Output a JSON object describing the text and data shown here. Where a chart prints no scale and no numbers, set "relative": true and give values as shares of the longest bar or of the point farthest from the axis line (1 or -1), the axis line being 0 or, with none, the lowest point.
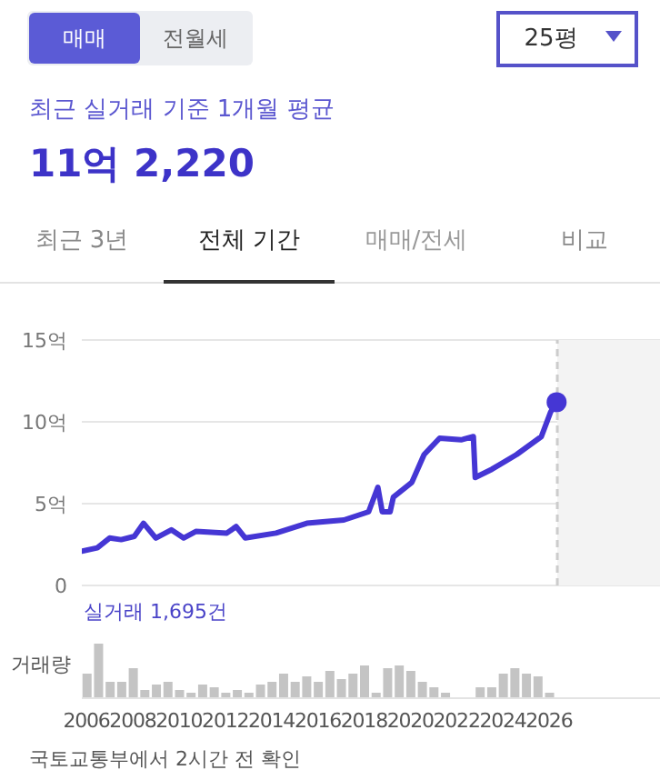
{
  "chart_data": [
    {
      "type": "line",
      "annotations": [
        "매매",
        "전월세",
        "25평",
        "최근 실거래 기준 1개월 평균",
        "11억 2,220",
        "최근 3년",
        "전체 기간",
        "매매/전세",
        "비교",
        "실거래 1,695건"
      ],
      "xlim": [
        2005.8,
        2030.8
      ],
      "xticks": [
        2006,
        2008,
        2010,
        2012,
        2014,
        2016,
        2018,
        2020,
        2022,
        2024,
        2026
      ],
      "tick_labels": "y",
      "ylim": [
        0,
        15
      ],
      "yticks": [
        0,
        {
          "value": 5,
          "label": "5억"
        },
        {
          "value": 10,
          "label": "10억"
        },
        {
          "value": 15,
          "label": "15억"
        }
      ],
      "grid": "y",
      "marker": "none",
      "series": [
        {
          "color": "#4536d4",
          "x": [
            2005.8,
            2006.47,
            2007.0,
            2007.5,
            2008.07,
            2008.47,
            2009.0,
            2009.67,
            2010.2,
            2010.73,
            2012.07,
            2012.47,
            2012.87,
            2014.2,
            2015.53,
            2017.13,
            2018.2,
            2018.6,
            2018.79,
            2019.13,
            2019.27,
            2020.07,
            2020.6,
            2021.27,
            2022.2,
            2022.73,
            2022.81,
            2023.53,
            2024.6,
            2025.67,
            2026.07,
            2026.33
          ],
          "values": [
            2.1,
            2.3,
            2.9,
            2.8,
            3.0,
            3.8,
            2.9,
            3.4,
            2.9,
            3.3,
            3.2,
            3.6,
            2.9,
            3.2,
            3.8,
            4.0,
            4.5,
            6.0,
            4.5,
            4.5,
            5.4,
            6.3,
            8.0,
            9.0,
            8.9,
            9.1,
            6.6,
            7.1,
            8.0,
            9.1,
            10.6,
            11.2
          ]
        },
        {
          "type": "scatter",
          "marker": "circle",
          "color": "#4536d4",
          "x": [
            2026.33
          ],
          "values": [
            11.2
          ]
        }
      ],
      "bands": [
        {
          "axis": "x",
          "from": 2026.36,
          "to": 2030.8,
          "color": "#f3f3f3"
        }
      ],
      "ref_lines": [
        {
          "axis": "x",
          "value": 2026.36,
          "color": "#cccccc",
          "line_style": "dashed"
        }
      ]
    },
    {
      "type": "bar",
      "relative": true,
      "ylabel": "거래량",
      "color": "#c4c4c4",
      "annotations": [
        "국토교통부에서 2시간 전 확인"
      ],
      "xlim": [
        2005.8,
        2030.8
      ],
      "xticks": [
        2006,
        2008,
        2010,
        2012,
        2014,
        2016,
        2018,
        2020,
        2022,
        2024,
        2026
      ],
      "x": [
        2006,
        2006.5,
        2007,
        2007.5,
        2008,
        2008.5,
        2009,
        2009.5,
        2010,
        2010.5,
        2011,
        2011.5,
        2012,
        2012.5,
        2013,
        2013.5,
        2014,
        2014.5,
        2015,
        2015.5,
        2016,
        2016.5,
        2017,
        2017.5,
        2018,
        2018.5,
        2019,
        2019.5,
        2020,
        2020.5,
        2021,
        2021.5,
        2022,
        2022.5,
        2023,
        2023.5,
        2024,
        2024.5,
        2025,
        2025.5,
        2026
      ],
      "values": [
        0.45,
        1.0,
        0.3,
        0.3,
        0.55,
        0.15,
        0.25,
        0.3,
        0.15,
        0.1,
        0.25,
        0.2,
        0.1,
        0.15,
        0.1,
        0.25,
        0.3,
        0.45,
        0.3,
        0.4,
        0.3,
        0.5,
        0.35,
        0.45,
        0.6,
        0.1,
        0.55,
        0.6,
        0.5,
        0.3,
        0.2,
        0.1,
        null,
        null,
        0.2,
        0.2,
        0.45,
        0.55,
        0.45,
        0.4,
        0.1
      ]
    }
  ]
}
